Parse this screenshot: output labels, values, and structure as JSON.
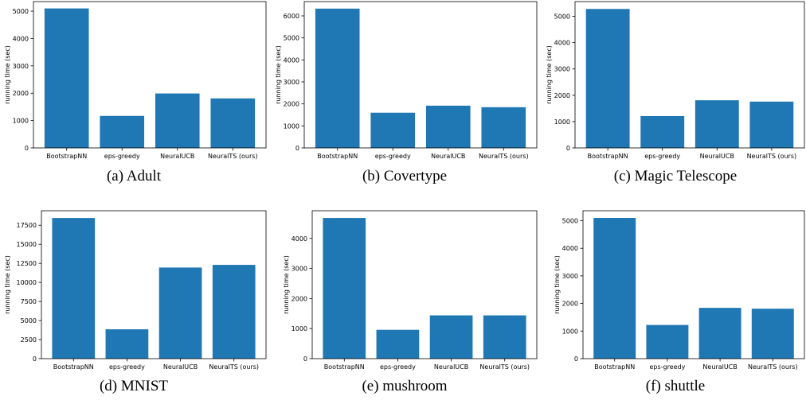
{
  "chart_data": [
    {
      "type": "bar",
      "caption": "(a) Adult",
      "categories": [
        "BootstrapNN",
        "eps-greedy",
        "NeuralUCB",
        "NeuralTS (ours)"
      ],
      "values": [
        5100,
        1170,
        1990,
        1810
      ],
      "ylabel": "running time (sec)",
      "ylim": [
        0,
        5350
      ],
      "yticks": [
        0,
        1000,
        2000,
        3000,
        4000,
        5000
      ],
      "color": "#1f77b4"
    },
    {
      "type": "bar",
      "caption": "(b) Covertype",
      "categories": [
        "BootstrapNN",
        "eps-greedy",
        "NeuralUCB",
        "NeuralTS (ours)"
      ],
      "values": [
        6330,
        1600,
        1920,
        1850
      ],
      "ylabel": "running time (sec)",
      "ylim": [
        0,
        6650
      ],
      "yticks": [
        0,
        1000,
        2000,
        3000,
        4000,
        5000,
        6000
      ],
      "color": "#1f77b4"
    },
    {
      "type": "bar",
      "caption": "(c) Magic Telescope",
      "categories": [
        "BootstrapNN",
        "eps-greedy",
        "NeuralUCB",
        "NeuralTS (ours)"
      ],
      "values": [
        5280,
        1210,
        1810,
        1760
      ],
      "ylabel": "running time (sec)",
      "ylim": [
        0,
        5560
      ],
      "yticks": [
        0,
        1000,
        2000,
        3000,
        4000,
        5000
      ],
      "color": "#1f77b4"
    },
    {
      "type": "bar",
      "caption": "(d) MNIST",
      "categories": [
        "BootstrapNN",
        "eps-greedy",
        "NeuralUCB",
        "NeuralTS (ours)"
      ],
      "values": [
        18450,
        3850,
        11950,
        12300
      ],
      "ylabel": "running time (sec)",
      "ylim": [
        0,
        19400
      ],
      "yticks": [
        0,
        2500,
        5000,
        7500,
        10000,
        12500,
        15000,
        17500
      ],
      "color": "#1f77b4"
    },
    {
      "type": "bar",
      "caption": "(e) mushroom",
      "categories": [
        "BootstrapNN",
        "eps-greedy",
        "NeuralUCB",
        "NeuralTS (ours)"
      ],
      "values": [
        4680,
        960,
        1440,
        1440
      ],
      "ylabel": "running time (sec)",
      "ylim": [
        0,
        4920
      ],
      "yticks": [
        0,
        1000,
        2000,
        3000,
        4000
      ],
      "color": "#1f77b4"
    },
    {
      "type": "bar",
      "caption": "(f) shuttle",
      "categories": [
        "BootstrapNN",
        "eps-greedy",
        "NeuralUCB",
        "NeuralTS (ours)"
      ],
      "values": [
        5100,
        1220,
        1840,
        1810
      ],
      "ylabel": "running time (sec)",
      "ylim": [
        0,
        5360
      ],
      "yticks": [
        0,
        1000,
        2000,
        3000,
        4000,
        5000
      ],
      "color": "#1f77b4"
    }
  ]
}
